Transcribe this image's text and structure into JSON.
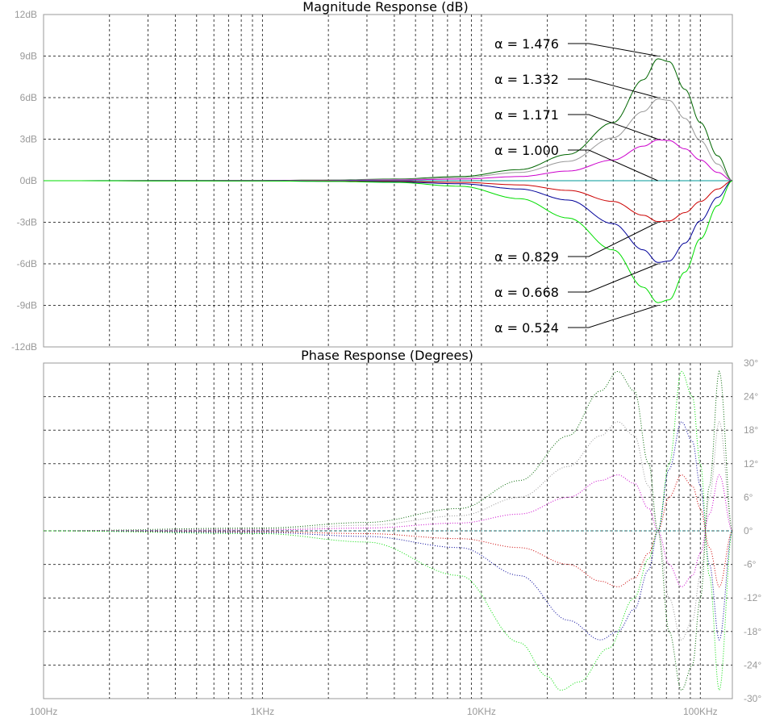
{
  "chart_data": [
    {
      "type": "line",
      "title": "Magnitude Response (dB)",
      "x_scale": "log",
      "xlim_hz": [
        100,
        140000
      ],
      "ylim": [
        -12,
        12
      ],
      "grid": true,
      "y_ticks": [
        12,
        9,
        6,
        3,
        0,
        -3,
        -6,
        -9,
        -12
      ],
      "y_tick_labels": [
        "12dB",
        "9dB",
        "6dB",
        "3dB",
        "0dB",
        "-3dB",
        "-6dB",
        "-9dB",
        "-12dB"
      ],
      "series": [
        {
          "name": "α = 1.476",
          "color": "#006600",
          "x_hz": [
            100,
            1000,
            2000,
            4000,
            8000,
            15000,
            25000,
            40000,
            55000,
            64000,
            72000,
            85000,
            100000,
            120000,
            140000
          ],
          "y_db": [
            0,
            0.02,
            0.05,
            0.12,
            0.3,
            0.8,
            1.9,
            4.2,
            7.3,
            8.8,
            8.6,
            6.6,
            4.2,
            1.8,
            0
          ]
        },
        {
          "name": "α = 1.332",
          "color": "#999999",
          "x_hz": [
            100,
            1000,
            2000,
            4000,
            8000,
            15000,
            25000,
            40000,
            55000,
            64000,
            72000,
            85000,
            100000,
            120000,
            140000
          ],
          "y_db": [
            0,
            0.01,
            0.04,
            0.09,
            0.22,
            0.6,
            1.4,
            3.1,
            5.0,
            5.9,
            5.8,
            4.5,
            2.9,
            1.2,
            0
          ]
        },
        {
          "name": "α = 1.171",
          "color": "#cc00cc",
          "x_hz": [
            100,
            1000,
            2000,
            4000,
            8000,
            15000,
            25000,
            40000,
            55000,
            64000,
            72000,
            85000,
            100000,
            120000,
            140000
          ],
          "y_db": [
            0,
            0.01,
            0.02,
            0.05,
            0.12,
            0.3,
            0.7,
            1.5,
            2.5,
            2.95,
            2.9,
            2.3,
            1.5,
            0.6,
            0
          ]
        },
        {
          "name": "α = 1.000",
          "color": "#009999",
          "x_hz": [
            100,
            140000
          ],
          "y_db": [
            0,
            0
          ]
        },
        {
          "name": "α = 0.829",
          "color": "#cc0000",
          "x_hz": [
            100,
            1000,
            2000,
            4000,
            8000,
            15000,
            25000,
            40000,
            55000,
            64000,
            72000,
            85000,
            100000,
            120000,
            140000
          ],
          "y_db": [
            0,
            -0.01,
            -0.02,
            -0.05,
            -0.12,
            -0.3,
            -0.7,
            -1.5,
            -2.5,
            -2.95,
            -2.9,
            -2.3,
            -1.5,
            -0.6,
            0
          ]
        },
        {
          "name": "α = 0.668",
          "color": "#000099",
          "x_hz": [
            100,
            1000,
            2000,
            4000,
            8000,
            15000,
            25000,
            40000,
            55000,
            64000,
            72000,
            85000,
            100000,
            120000,
            140000
          ],
          "y_db": [
            0,
            -0.01,
            -0.04,
            -0.09,
            -0.22,
            -0.6,
            -1.4,
            -3.1,
            -5.0,
            -5.9,
            -5.8,
            -4.5,
            -2.9,
            -1.2,
            0
          ]
        },
        {
          "name": "α = 0.524",
          "color": "#00dd00",
          "x_hz": [
            100,
            1000,
            2000,
            4000,
            8000,
            15000,
            25000,
            40000,
            55000,
            64000,
            72000,
            85000,
            100000,
            120000,
            140000
          ],
          "y_db": [
            0,
            -0.02,
            -0.05,
            -0.12,
            -0.4,
            -1.3,
            -2.7,
            -5.0,
            -7.7,
            -8.8,
            -8.6,
            -6.6,
            -4.2,
            -1.8,
            0
          ]
        }
      ],
      "annotations": [
        {
          "text": "α = 1.476",
          "series": 0,
          "tip_hz": 64000,
          "tip_db": 9
        },
        {
          "text": "α = 1.332",
          "series": 1,
          "tip_hz": 64000,
          "tip_db": 6
        },
        {
          "text": "α = 1.171",
          "series": 2,
          "tip_hz": 64000,
          "tip_db": 3
        },
        {
          "text": "α = 1.000",
          "series": 3,
          "tip_hz": 64000,
          "tip_db": 0
        },
        {
          "text": "α = 0.829",
          "series": 4,
          "tip_hz": 64000,
          "tip_db": -3
        },
        {
          "text": "α = 0.668",
          "series": 5,
          "tip_hz": 64000,
          "tip_db": -6
        },
        {
          "text": "α = 0.524",
          "series": 6,
          "tip_hz": 64000,
          "tip_db": -9
        }
      ]
    },
    {
      "type": "line",
      "title": "Phase Response (Degrees)",
      "x_scale": "log",
      "xlim_hz": [
        100,
        140000
      ],
      "ylim": [
        -30,
        30
      ],
      "grid": true,
      "line_style": "dotted",
      "x_tick_labels": [
        "100Hz",
        "1KHz",
        "10KHz",
        "100KHz"
      ],
      "x_ticks_hz": [
        100,
        1000,
        10000,
        100000
      ],
      "y_ticks": [
        30,
        24,
        18,
        12,
        6,
        0,
        -6,
        -12,
        -18,
        -24,
        -30
      ],
      "y_tick_labels": [
        "30°",
        "24°",
        "18°",
        "12°",
        "6°",
        "0°",
        "-6°",
        "-12°",
        "-18°",
        "-24°",
        "-30°"
      ],
      "series": [
        {
          "name": "α = 1.476",
          "color": "#006600",
          "x_hz": [
            100,
            1000,
            3000,
            8000,
            15000,
            25000,
            35000,
            42000,
            50000,
            58000,
            64000,
            72000,
            82000,
            92000,
            100000,
            110000,
            122000,
            140000
          ],
          "y_deg": [
            0,
            0.5,
            1.5,
            4,
            9,
            17,
            25,
            28.5,
            25,
            12,
            0,
            -18,
            -28.5,
            -24,
            -12,
            8,
            28.5,
            0
          ]
        },
        {
          "name": "α = 1.332",
          "color": "#999999",
          "x_hz": [
            100,
            1000,
            3000,
            8000,
            15000,
            25000,
            35000,
            42000,
            50000,
            58000,
            64000,
            72000,
            82000,
            92000,
            100000,
            110000,
            122000,
            140000
          ],
          "y_deg": [
            0,
            0.3,
            1.0,
            2.7,
            6,
            11.5,
            17,
            19.5,
            17,
            8,
            0,
            -12,
            -19.5,
            -16,
            -8,
            6,
            19.5,
            0
          ]
        },
        {
          "name": "α = 1.171",
          "color": "#cc00cc",
          "x_hz": [
            100,
            1000,
            3000,
            8000,
            15000,
            25000,
            35000,
            42000,
            50000,
            58000,
            64000,
            72000,
            82000,
            92000,
            100000,
            110000,
            122000,
            140000
          ],
          "y_deg": [
            0,
            0.15,
            0.5,
            1.4,
            3,
            6,
            9,
            10,
            8.5,
            4,
            0,
            -6,
            -10,
            -8,
            -4,
            3,
            10,
            0
          ]
        },
        {
          "name": "α = 1.000",
          "color": "#009999",
          "x_hz": [
            100,
            140000
          ],
          "y_deg": [
            0,
            0
          ]
        },
        {
          "name": "α = 0.829",
          "color": "#cc0000",
          "x_hz": [
            100,
            1000,
            3000,
            8000,
            15000,
            25000,
            35000,
            42000,
            50000,
            58000,
            64000,
            72000,
            82000,
            92000,
            100000,
            110000,
            122000,
            140000
          ],
          "y_deg": [
            0,
            -0.15,
            -0.5,
            -1.4,
            -3,
            -6,
            -9,
            -10,
            -8.5,
            -4,
            0,
            6,
            10,
            8,
            4,
            -3,
            -10,
            0
          ]
        },
        {
          "name": "α = 0.668",
          "color": "#000099",
          "x_hz": [
            100,
            1000,
            3000,
            8000,
            15000,
            25000,
            35000,
            42000,
            50000,
            58000,
            64000,
            72000,
            82000,
            92000,
            100000,
            110000,
            122000,
            140000
          ],
          "y_deg": [
            0,
            -0.3,
            -1.0,
            -3,
            -8,
            -16,
            -19.5,
            -18,
            -14,
            -7,
            0,
            11,
            19.5,
            16,
            8,
            -6,
            -19.5,
            0
          ]
        },
        {
          "name": "α = 0.524",
          "color": "#00dd00",
          "x_hz": [
            100,
            1000,
            3000,
            8000,
            15000,
            20000,
            23000,
            28000,
            38000,
            50000,
            58000,
            64000,
            72000,
            82000,
            92000,
            100000,
            110000,
            122000,
            140000
          ],
          "y_deg": [
            0,
            -0.5,
            -2,
            -8,
            -20,
            -26,
            -28.5,
            -27,
            -21,
            -12,
            -5,
            0,
            12,
            28.5,
            24,
            12,
            -8,
            -28.5,
            0
          ]
        }
      ]
    }
  ]
}
